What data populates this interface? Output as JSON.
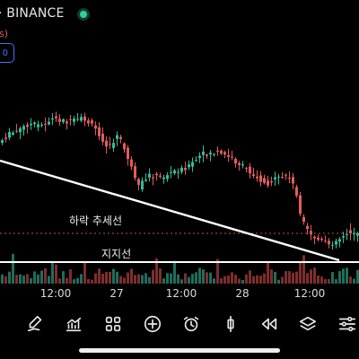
{
  "header": {
    "exchange_label": "· BINANCE",
    "status_color": "#2fd19a",
    "sub_fragment": "s)",
    "price_tag": "0"
  },
  "annotations": {
    "downtrend_label": "하락 추세선",
    "support_label": "지지선"
  },
  "time_axis": {
    "ticks": [
      "12:00",
      "27",
      "12:00",
      "28",
      "12:00"
    ]
  },
  "toolbar": {
    "tools": [
      {
        "icon": "pen-icon"
      },
      {
        "icon": "indicators-icon"
      },
      {
        "icon": "grid-icon"
      },
      {
        "icon": "add-circle-icon"
      },
      {
        "icon": "alarm-clock-icon"
      },
      {
        "icon": "candlestick-icon"
      },
      {
        "icon": "rewind-icon"
      },
      {
        "icon": "layers-icon"
      },
      {
        "icon": "settings-sliders-icon"
      }
    ]
  },
  "colors": {
    "bull": "#2fbf9a",
    "bear": "#e45b5b",
    "volume_bull": "#1e6e5c",
    "volume_bear": "#7f2d2d",
    "price_dotted": "#b84f4f",
    "trendline": "#ffffff",
    "accent": "#3f74ff"
  }
}
